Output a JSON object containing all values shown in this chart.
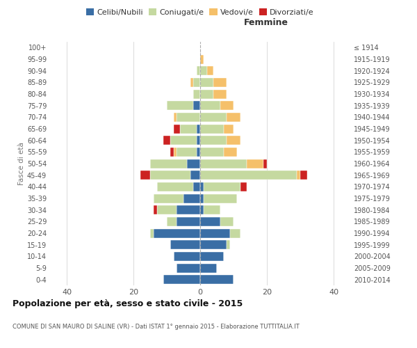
{
  "age_groups": [
    "0-4",
    "5-9",
    "10-14",
    "15-19",
    "20-24",
    "25-29",
    "30-34",
    "35-39",
    "40-44",
    "45-49",
    "50-54",
    "55-59",
    "60-64",
    "65-69",
    "70-74",
    "75-79",
    "80-84",
    "85-89",
    "90-94",
    "95-99",
    "100+"
  ],
  "birth_years": [
    "2010-2014",
    "2005-2009",
    "2000-2004",
    "1995-1999",
    "1990-1994",
    "1985-1989",
    "1980-1984",
    "1975-1979",
    "1970-1974",
    "1965-1969",
    "1960-1964",
    "1955-1959",
    "1950-1954",
    "1945-1949",
    "1940-1944",
    "1935-1939",
    "1930-1934",
    "1925-1929",
    "1920-1924",
    "1915-1919",
    "≤ 1914"
  ],
  "male": {
    "celibi": [
      11,
      7,
      8,
      9,
      14,
      7,
      7,
      5,
      2,
      3,
      4,
      1,
      1,
      1,
      0,
      2,
      0,
      0,
      0,
      0,
      0
    ],
    "coniugati": [
      0,
      0,
      0,
      0,
      1,
      3,
      6,
      9,
      11,
      12,
      11,
      6,
      8,
      5,
      7,
      8,
      2,
      2,
      1,
      0,
      0
    ],
    "vedovi": [
      0,
      0,
      0,
      0,
      0,
      0,
      0,
      0,
      0,
      0,
      0,
      1,
      0,
      0,
      1,
      0,
      0,
      1,
      0,
      0,
      0
    ],
    "divorziati": [
      0,
      0,
      0,
      0,
      0,
      0,
      1,
      0,
      0,
      3,
      0,
      1,
      2,
      2,
      0,
      0,
      0,
      0,
      0,
      0,
      0
    ]
  },
  "female": {
    "nubili": [
      10,
      5,
      7,
      8,
      9,
      6,
      1,
      1,
      1,
      0,
      0,
      0,
      0,
      0,
      0,
      0,
      0,
      0,
      0,
      0,
      0
    ],
    "coniugate": [
      0,
      0,
      0,
      1,
      3,
      4,
      5,
      10,
      11,
      29,
      14,
      7,
      8,
      7,
      8,
      6,
      4,
      4,
      2,
      0,
      0
    ],
    "vedove": [
      0,
      0,
      0,
      0,
      0,
      0,
      0,
      0,
      0,
      1,
      5,
      4,
      4,
      3,
      4,
      4,
      4,
      4,
      2,
      1,
      0
    ],
    "divorziate": [
      0,
      0,
      0,
      0,
      0,
      0,
      0,
      0,
      2,
      2,
      1,
      0,
      0,
      0,
      0,
      0,
      0,
      0,
      0,
      0,
      0
    ]
  },
  "colors": {
    "celibi": "#3a6ea5",
    "coniugati": "#c5d9a0",
    "vedovi": "#f5c06a",
    "divorziati": "#cc2222"
  },
  "xlim": 45,
  "title": "Popolazione per età, sesso e stato civile - 2015",
  "subtitle": "COMUNE DI SAN MAURO DI SALINE (VR) - Dati ISTAT 1° gennaio 2015 - Elaborazione TUTTITALIA.IT",
  "ylabel": "Fasce di età",
  "xlabel_right": "Femmine"
}
